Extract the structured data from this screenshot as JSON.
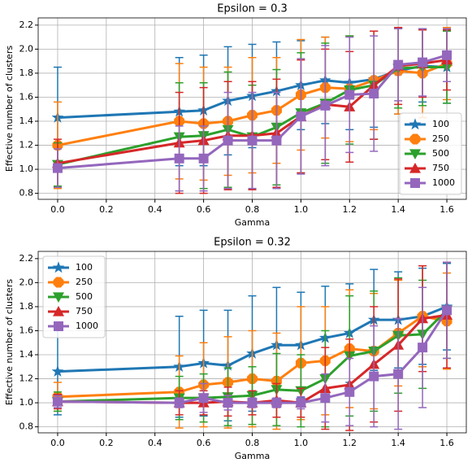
{
  "chart_data": [
    {
      "type": "line",
      "title": "Epsilon = 0.3",
      "x_label": "Gamma",
      "y_label": "Effective number of clusters",
      "x": [
        0,
        0.5,
        0.6,
        0.7,
        0.8,
        0.9,
        1.0,
        1.1,
        1.2,
        1.3,
        1.4,
        1.5,
        1.6
      ],
      "xlim": [
        -0.08,
        1.68
      ],
      "ylim": [
        0.75,
        2.26
      ],
      "xticks": [
        {
          "value": 0,
          "label": "0.0"
        },
        0.2,
        0.4,
        0.6,
        0.8,
        {
          "value": 1,
          "label": "1.0"
        },
        1.2,
        1.4,
        1.6
      ],
      "yticks": [
        0.8,
        {
          "value": 1,
          "label": "1.0"
        },
        1.2,
        1.4,
        1.6,
        1.8,
        {
          "value": 2,
          "label": "2.0"
        },
        2.2
      ],
      "grid": true,
      "legend": "lower right",
      "series": [
        {
          "name": "100",
          "color": "#1f77b4",
          "marker": "star",
          "values": [
            1.43,
            1.48,
            1.49,
            1.57,
            1.61,
            1.65,
            1.7,
            1.74,
            1.72,
            1.75,
            1.82,
            1.86,
            1.85
          ],
          "errors": [
            0.42,
            0.45,
            0.46,
            0.45,
            0.43,
            0.41,
            0.37,
            0.36,
            0.39,
            0.4,
            0.36,
            0.3,
            0.3
          ]
        },
        {
          "name": "250",
          "color": "#ff7f0e",
          "marker": "octagon",
          "values": [
            1.2,
            1.4,
            1.38,
            1.4,
            1.45,
            1.49,
            1.62,
            1.68,
            1.67,
            1.74,
            1.82,
            1.8,
            1.88
          ],
          "errors": [
            0.36,
            0.48,
            0.47,
            0.45,
            0.48,
            0.44,
            0.46,
            0.42,
            0.44,
            0.41,
            0.36,
            0.37,
            0.3
          ]
        },
        {
          "name": "500",
          "color": "#2ca02c",
          "marker": "triangle-down",
          "values": [
            1.04,
            1.27,
            1.28,
            1.33,
            1.27,
            1.35,
            1.47,
            1.55,
            1.66,
            1.7,
            1.84,
            1.85,
            1.85
          ],
          "errors": [
            0.18,
            0.45,
            0.44,
            0.48,
            0.43,
            0.48,
            0.5,
            0.5,
            0.45,
            0.45,
            0.33,
            0.32,
            0.3
          ]
        },
        {
          "name": "750",
          "color": "#d62728",
          "marker": "triangle-up",
          "values": [
            1.05,
            1.22,
            1.24,
            1.28,
            1.28,
            1.3,
            1.44,
            1.54,
            1.52,
            1.7,
            1.86,
            1.88,
            1.91
          ],
          "errors": [
            0.2,
            0.42,
            0.44,
            0.45,
            0.45,
            0.45,
            0.47,
            0.46,
            0.46,
            0.45,
            0.32,
            0.28,
            0.25
          ]
        },
        {
          "name": "1000",
          "color": "#9467bd",
          "marker": "square",
          "values": [
            1.01,
            1.09,
            1.09,
            1.24,
            1.24,
            1.24,
            1.44,
            1.53,
            1.62,
            1.63,
            1.87,
            1.89,
            1.95
          ],
          "errors": [
            0.16,
            0.27,
            0.27,
            0.4,
            0.4,
            0.4,
            0.48,
            0.5,
            0.48,
            0.48,
            0.3,
            0.28,
            0.22
          ]
        }
      ]
    },
    {
      "type": "line",
      "title": "Epsilon = 0.32",
      "x_label": "Gamma",
      "y_label": "Effective number of clusters",
      "x": [
        0,
        0.5,
        0.6,
        0.7,
        0.8,
        0.9,
        1.0,
        1.1,
        1.2,
        1.3,
        1.4,
        1.5,
        1.6
      ],
      "xlim": [
        -0.08,
        1.68
      ],
      "ylim": [
        0.75,
        2.26
      ],
      "xticks": [
        {
          "value": 0,
          "label": "0.0"
        },
        0.2,
        0.4,
        0.6,
        0.8,
        {
          "value": 1,
          "label": "1.0"
        },
        1.2,
        1.4,
        1.6
      ],
      "yticks": [
        0.8,
        {
          "value": 1,
          "label": "1.0"
        },
        1.2,
        1.4,
        1.6,
        1.8,
        {
          "value": 2,
          "label": "2.0"
        },
        2.2
      ],
      "grid": true,
      "legend": "upper left",
      "series": [
        {
          "name": "100",
          "color": "#1f77b4",
          "marker": "star",
          "values": [
            1.26,
            1.3,
            1.33,
            1.31,
            1.41,
            1.48,
            1.48,
            1.54,
            1.58,
            1.69,
            1.69,
            1.72,
            1.8
          ],
          "errors": [
            0.36,
            0.42,
            0.44,
            0.46,
            0.48,
            0.48,
            0.44,
            0.43,
            0.41,
            0.42,
            0.4,
            0.4,
            0.36
          ]
        },
        {
          "name": "250",
          "color": "#ff7f0e",
          "marker": "octagon",
          "values": [
            1.05,
            1.09,
            1.15,
            1.17,
            1.2,
            1.18,
            1.33,
            1.35,
            1.45,
            1.43,
            1.58,
            1.72,
            1.68
          ],
          "errors": [
            0.12,
            0.3,
            0.35,
            0.38,
            0.4,
            0.4,
            0.47,
            0.45,
            0.49,
            0.48,
            0.44,
            0.42,
            0.4
          ]
        },
        {
          "name": "500",
          "color": "#2ca02c",
          "marker": "triangle-down",
          "values": [
            1.01,
            1.04,
            1.04,
            1.05,
            1.06,
            1.11,
            1.1,
            1.2,
            1.39,
            1.43,
            1.56,
            1.57,
            1.77
          ],
          "errors": [
            0.08,
            0.18,
            0.2,
            0.24,
            0.24,
            0.3,
            0.3,
            0.4,
            0.5,
            0.5,
            0.48,
            0.45,
            0.4
          ]
        },
        {
          "name": "750",
          "color": "#d62728",
          "marker": "triangle-up",
          "values": [
            1.01,
            1.0,
            1.0,
            1.01,
            1.0,
            1.02,
            1.0,
            1.12,
            1.15,
            1.32,
            1.48,
            1.7,
            1.73
          ],
          "errors": [
            0.06,
            0.1,
            0.1,
            0.12,
            0.1,
            0.14,
            0.12,
            0.34,
            0.38,
            0.48,
            0.55,
            0.44,
            0.44
          ]
        },
        {
          "name": "1000",
          "color": "#9467bd",
          "marker": "square",
          "values": [
            1.01,
            1.0,
            1.04,
            1.0,
            1.0,
            1.0,
            1.0,
            1.04,
            1.09,
            1.22,
            1.24,
            1.46,
            1.77
          ],
          "errors": [
            0.05,
            0.04,
            0.12,
            0.06,
            0.04,
            0.04,
            0.05,
            0.2,
            0.28,
            0.42,
            0.46,
            0.5,
            0.4
          ]
        }
      ]
    }
  ]
}
